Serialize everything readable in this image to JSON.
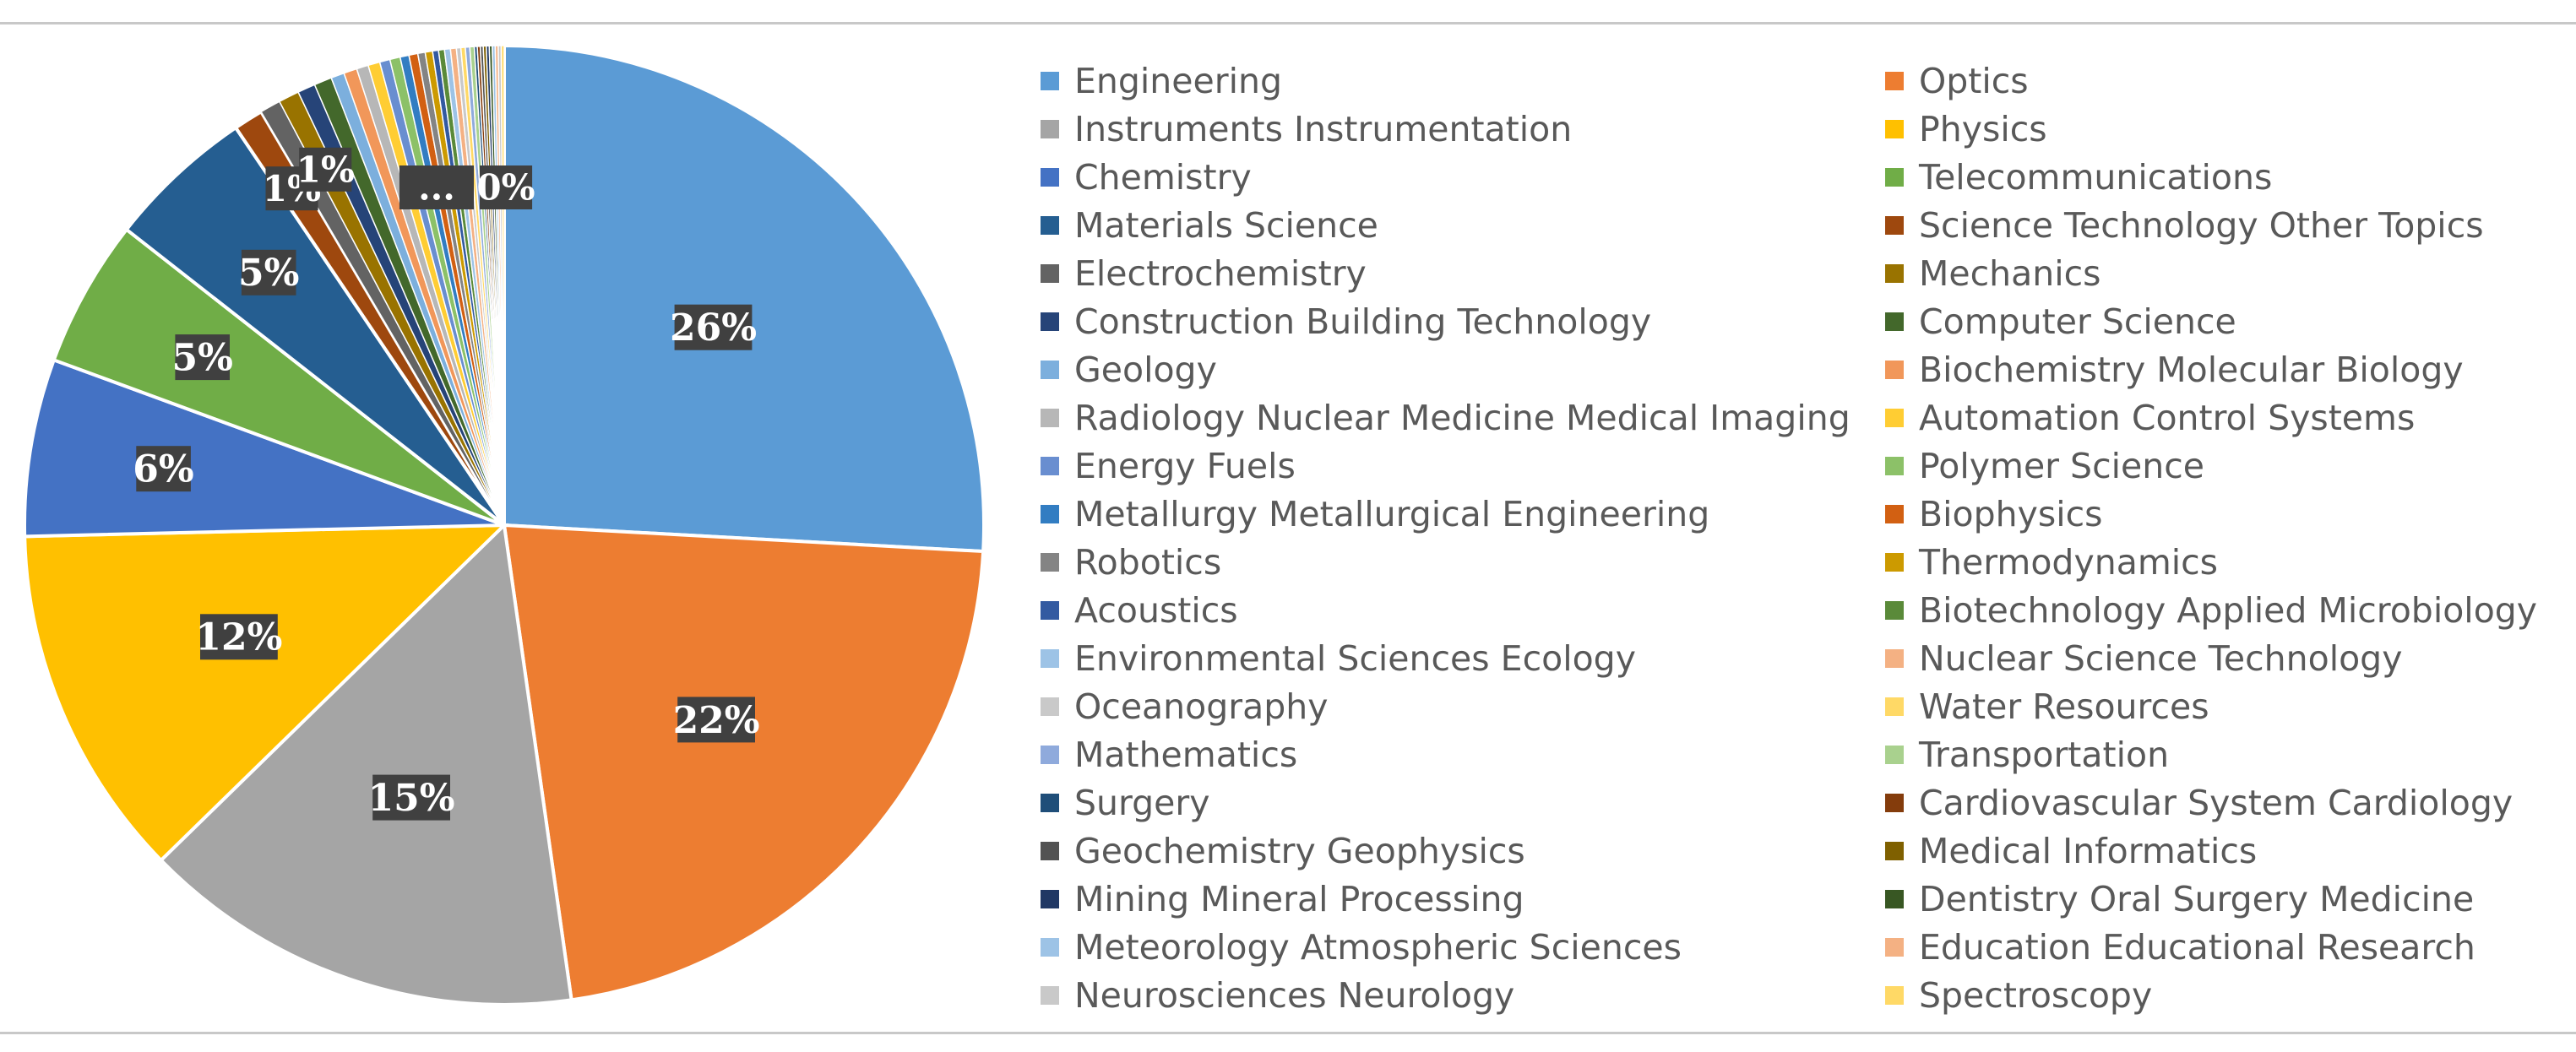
{
  "chart_data": {
    "type": "pie",
    "title": "",
    "legend_position": "right",
    "slices": [
      {
        "name": "Engineering",
        "value": 26,
        "color": "#5b9bd5"
      },
      {
        "name": "Optics",
        "value": 22,
        "color": "#ed7d31"
      },
      {
        "name": "Instruments Instrumentation",
        "value": 15,
        "color": "#a5a5a5"
      },
      {
        "name": "Physics",
        "value": 12,
        "color": "#ffc000"
      },
      {
        "name": "Chemistry",
        "value": 6,
        "color": "#4472c4"
      },
      {
        "name": "Telecommunications",
        "value": 5,
        "color": "#70ad47"
      },
      {
        "name": "Materials Science",
        "value": 5,
        "color": "#255e91"
      },
      {
        "name": "Science Technology Other Topics",
        "value": 1,
        "color": "#9e480e"
      },
      {
        "name": "Electrochemistry",
        "value": 0.7,
        "color": "#636363"
      },
      {
        "name": "Mechanics",
        "value": 0.7,
        "color": "#997300"
      },
      {
        "name": "Construction Building Technology",
        "value": 0.6,
        "color": "#264478"
      },
      {
        "name": "Computer Science",
        "value": 0.6,
        "color": "#43682b"
      },
      {
        "name": "Geology",
        "value": 0.45,
        "color": "#7cafdd"
      },
      {
        "name": "Biochemistry Molecular Biology",
        "value": 0.45,
        "color": "#f1975a"
      },
      {
        "name": "Radiology Nuclear Medicine Medical Imaging",
        "value": 0.4,
        "color": "#b7b7b7"
      },
      {
        "name": "Automation Control Systems",
        "value": 0.4,
        "color": "#ffcd33"
      },
      {
        "name": "Energy Fuels",
        "value": 0.35,
        "color": "#698ed0"
      },
      {
        "name": "Polymer Science",
        "value": 0.35,
        "color": "#8cc168"
      },
      {
        "name": "Metallurgy Metallurgical Engineering",
        "value": 0.3,
        "color": "#327dc2"
      },
      {
        "name": "Biophysics",
        "value": 0.3,
        "color": "#d26012"
      },
      {
        "name": "Robotics",
        "value": 0.25,
        "color": "#848484"
      },
      {
        "name": "Thermodynamics",
        "value": 0.25,
        "color": "#cc9a00"
      },
      {
        "name": "Acoustics",
        "value": 0.2,
        "color": "#335aa1"
      },
      {
        "name": "Biotechnology Applied Microbiology",
        "value": 0.2,
        "color": "#5a8a39"
      },
      {
        "name": "Environmental Sciences Ecology",
        "value": 0.2,
        "color": "#9dc3e6"
      },
      {
        "name": "Nuclear Science Technology",
        "value": 0.2,
        "color": "#f4b183"
      },
      {
        "name": "Oceanography",
        "value": 0.15,
        "color": "#c9c9c9"
      },
      {
        "name": "Water Resources",
        "value": 0.15,
        "color": "#ffd966"
      },
      {
        "name": "Mathematics",
        "value": 0.15,
        "color": "#8faadc"
      },
      {
        "name": "Transportation",
        "value": 0.15,
        "color": "#a9d18e"
      },
      {
        "name": "Surgery",
        "value": 0.1,
        "color": "#1f4e79"
      },
      {
        "name": "Cardiovascular System Cardiology",
        "value": 0.1,
        "color": "#843c0c"
      },
      {
        "name": "Geochemistry Geophysics",
        "value": 0.1,
        "color": "#525252"
      },
      {
        "name": "Medical Informatics",
        "value": 0.1,
        "color": "#7f6000"
      },
      {
        "name": "Mining Mineral Processing",
        "value": 0.1,
        "color": "#203864"
      },
      {
        "name": "Dentistry Oral Surgery Medicine",
        "value": 0.1,
        "color": "#385723"
      },
      {
        "name": "Meteorology Atmospheric Sciences",
        "value": 0.1,
        "color": "#9dc3e6"
      },
      {
        "name": "Education Educational Research",
        "value": 0.1,
        "color": "#f4b183"
      },
      {
        "name": "Neurosciences Neurology",
        "value": 0.1,
        "color": "#c9c9c9"
      },
      {
        "name": "Spectroscopy",
        "value": 0.1,
        "color": "#ffd966"
      }
    ],
    "data_labels": [
      {
        "text": "26%",
        "slice": 0
      },
      {
        "text": "22%",
        "slice": 1
      },
      {
        "text": "15%",
        "slice": 2
      },
      {
        "text": "12%",
        "slice": 3
      },
      {
        "text": "6%",
        "slice": 4
      },
      {
        "text": "5%",
        "slice": 5
      },
      {
        "text": "5%",
        "slice": 6
      },
      {
        "text": "1%",
        "slice": 7
      },
      {
        "text": "1%",
        "slice": 9
      },
      {
        "text": "...",
        "slice": 14
      },
      {
        "text": "0%",
        "slice": 28
      }
    ]
  }
}
